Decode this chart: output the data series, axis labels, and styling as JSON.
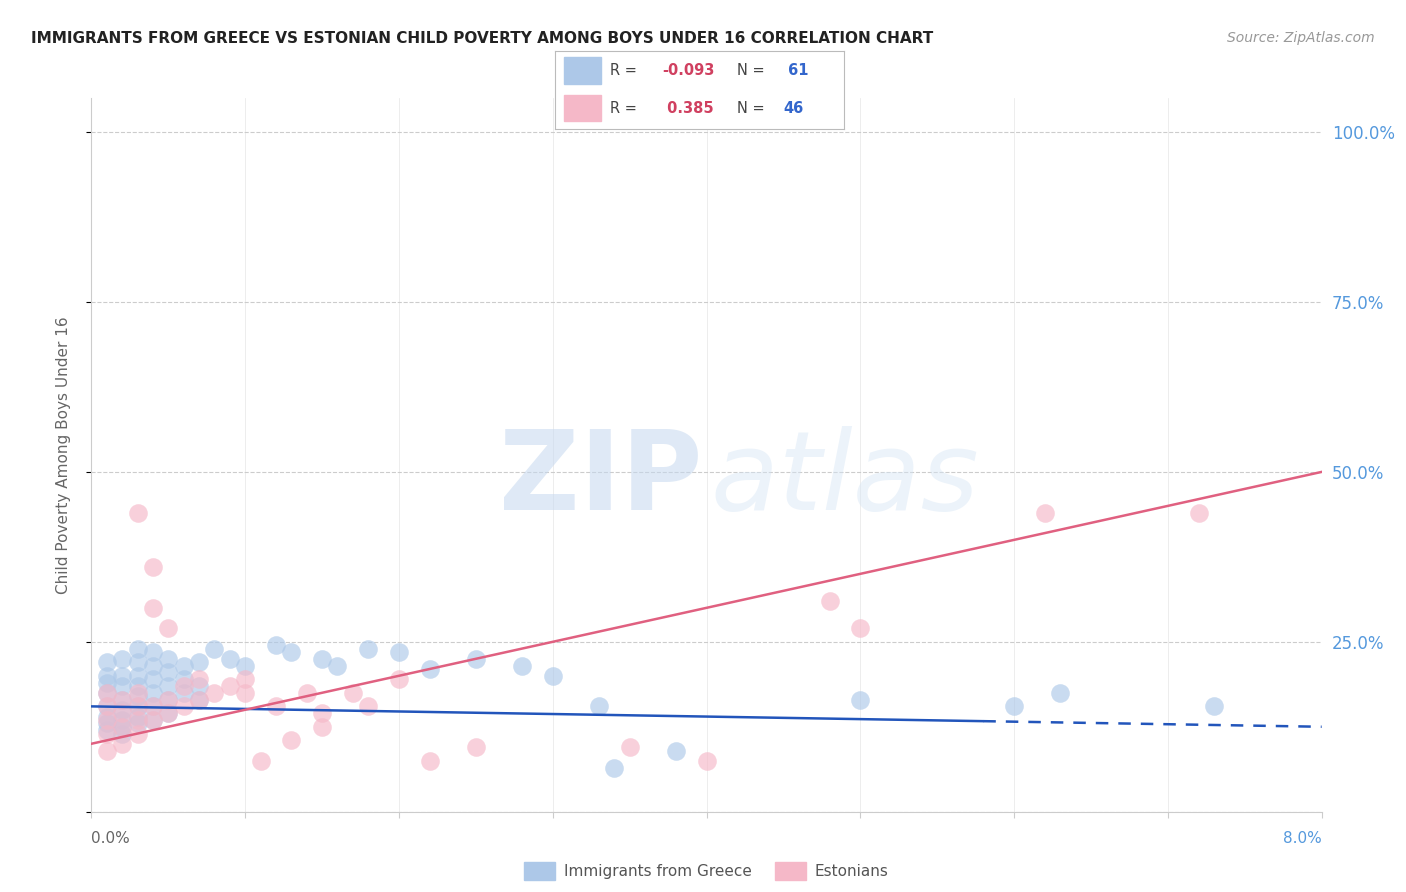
{
  "title": "IMMIGRANTS FROM GREECE VS ESTONIAN CHILD POVERTY AMONG BOYS UNDER 16 CORRELATION CHART",
  "source": "Source: ZipAtlas.com",
  "ylabel": "Child Poverty Among Boys Under 16",
  "yticks": [
    0.0,
    0.25,
    0.5,
    0.75,
    1.0
  ],
  "ytick_labels": [
    "",
    "25.0%",
    "50.0%",
    "75.0%",
    "100.0%"
  ],
  "xlim": [
    0.0,
    0.08
  ],
  "ylim": [
    0.0,
    1.05
  ],
  "watermark_zip": "ZIP",
  "watermark_atlas": "atlas",
  "blue_color": "#adc8e8",
  "pink_color": "#f5b8c8",
  "blue_line_color": "#2255bb",
  "pink_line_color": "#e06080",
  "right_axis_color": "#5599dd",
  "grid_color": "#cccccc",
  "title_color": "#222222",
  "source_color": "#999999",
  "blue_R": "-0.093",
  "blue_N": "61",
  "pink_R": "0.385",
  "pink_N": "46",
  "blue_line": [
    [
      0.0,
      0.155
    ],
    [
      0.08,
      0.125
    ]
  ],
  "blue_line_solid_end": 0.058,
  "pink_line": [
    [
      0.0,
      0.1
    ],
    [
      0.08,
      0.5
    ]
  ],
  "blue_scatter": [
    [
      0.001,
      0.22
    ],
    [
      0.001,
      0.2
    ],
    [
      0.001,
      0.19
    ],
    [
      0.001,
      0.175
    ],
    [
      0.001,
      0.155
    ],
    [
      0.001,
      0.14
    ],
    [
      0.001,
      0.13
    ],
    [
      0.001,
      0.12
    ],
    [
      0.002,
      0.225
    ],
    [
      0.002,
      0.2
    ],
    [
      0.002,
      0.185
    ],
    [
      0.002,
      0.165
    ],
    [
      0.002,
      0.15
    ],
    [
      0.002,
      0.135
    ],
    [
      0.002,
      0.125
    ],
    [
      0.002,
      0.115
    ],
    [
      0.003,
      0.24
    ],
    [
      0.003,
      0.22
    ],
    [
      0.003,
      0.2
    ],
    [
      0.003,
      0.185
    ],
    [
      0.003,
      0.17
    ],
    [
      0.003,
      0.155
    ],
    [
      0.003,
      0.14
    ],
    [
      0.003,
      0.13
    ],
    [
      0.004,
      0.235
    ],
    [
      0.004,
      0.215
    ],
    [
      0.004,
      0.195
    ],
    [
      0.004,
      0.175
    ],
    [
      0.004,
      0.155
    ],
    [
      0.004,
      0.135
    ],
    [
      0.005,
      0.225
    ],
    [
      0.005,
      0.205
    ],
    [
      0.005,
      0.185
    ],
    [
      0.005,
      0.165
    ],
    [
      0.005,
      0.145
    ],
    [
      0.006,
      0.215
    ],
    [
      0.006,
      0.195
    ],
    [
      0.006,
      0.175
    ],
    [
      0.007,
      0.22
    ],
    [
      0.007,
      0.185
    ],
    [
      0.007,
      0.165
    ],
    [
      0.008,
      0.24
    ],
    [
      0.009,
      0.225
    ],
    [
      0.01,
      0.215
    ],
    [
      0.012,
      0.245
    ],
    [
      0.013,
      0.235
    ],
    [
      0.015,
      0.225
    ],
    [
      0.016,
      0.215
    ],
    [
      0.018,
      0.24
    ],
    [
      0.02,
      0.235
    ],
    [
      0.022,
      0.21
    ],
    [
      0.025,
      0.225
    ],
    [
      0.028,
      0.215
    ],
    [
      0.03,
      0.2
    ],
    [
      0.033,
      0.155
    ],
    [
      0.034,
      0.065
    ],
    [
      0.038,
      0.09
    ],
    [
      0.05,
      0.165
    ],
    [
      0.06,
      0.155
    ],
    [
      0.063,
      0.175
    ],
    [
      0.073,
      0.155
    ]
  ],
  "pink_scatter": [
    [
      0.001,
      0.09
    ],
    [
      0.001,
      0.115
    ],
    [
      0.001,
      0.135
    ],
    [
      0.001,
      0.155
    ],
    [
      0.001,
      0.175
    ],
    [
      0.002,
      0.1
    ],
    [
      0.002,
      0.125
    ],
    [
      0.002,
      0.145
    ],
    [
      0.002,
      0.165
    ],
    [
      0.003,
      0.115
    ],
    [
      0.003,
      0.135
    ],
    [
      0.003,
      0.155
    ],
    [
      0.003,
      0.175
    ],
    [
      0.003,
      0.44
    ],
    [
      0.004,
      0.135
    ],
    [
      0.004,
      0.155
    ],
    [
      0.004,
      0.3
    ],
    [
      0.004,
      0.36
    ],
    [
      0.005,
      0.145
    ],
    [
      0.005,
      0.165
    ],
    [
      0.005,
      0.27
    ],
    [
      0.006,
      0.155
    ],
    [
      0.006,
      0.185
    ],
    [
      0.007,
      0.165
    ],
    [
      0.007,
      0.195
    ],
    [
      0.008,
      0.175
    ],
    [
      0.009,
      0.185
    ],
    [
      0.01,
      0.175
    ],
    [
      0.01,
      0.195
    ],
    [
      0.011,
      0.075
    ],
    [
      0.012,
      0.155
    ],
    [
      0.013,
      0.105
    ],
    [
      0.014,
      0.175
    ],
    [
      0.015,
      0.145
    ],
    [
      0.015,
      0.125
    ],
    [
      0.017,
      0.175
    ],
    [
      0.018,
      0.155
    ],
    [
      0.02,
      0.195
    ],
    [
      0.022,
      0.075
    ],
    [
      0.025,
      0.095
    ],
    [
      0.035,
      0.095
    ],
    [
      0.04,
      0.075
    ],
    [
      0.048,
      0.31
    ],
    [
      0.05,
      0.27
    ],
    [
      0.062,
      0.44
    ],
    [
      0.072,
      0.44
    ]
  ]
}
